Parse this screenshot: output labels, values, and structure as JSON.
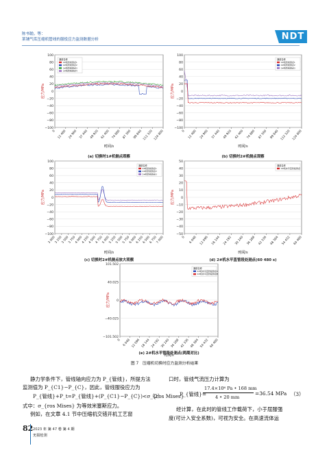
{
  "header": {
    "authors": "陈书翰，等：",
    "title": "某铺气库压缩机管线的服役应力监测数据分析",
    "logo": "NDT"
  },
  "figure": {
    "caption": "图 7　压缩机切换时应力监测分析结果",
    "panels": [
      {
        "id": "a",
        "caption": "(a) 切换时1#机侧点观察",
        "ylabel": "应力/MPa",
        "xlabel": "时间/s",
        "yticks": [
          "100",
          "80",
          "60",
          "40",
          "20",
          "0",
          "−20",
          "−40",
          "−60",
          "−80",
          "−100"
        ],
        "xticks": [
          "0",
          "12 480",
          "24 960",
          "37 440",
          "49 920",
          "62 400",
          "74 880",
          "87 360",
          "99 840",
          "112 320",
          "124 800"
        ],
        "legend_title": "通道名称",
        "legend": [
          "1#机管线测点1",
          "1#机管线测点2",
          "1#机管线测点3",
          "1#机管线测点4"
        ],
        "colors": [
          "#d62728",
          "#1f3fb4",
          "#2ca02c",
          "#9467bd"
        ]
      },
      {
        "id": "b",
        "caption": "(b) 切换时2#机侧点观察",
        "ylabel": "应力/MPa",
        "xlabel": "时间/s",
        "yticks": [
          "100",
          "80",
          "60",
          "40",
          "20",
          "0",
          "−20",
          "−40",
          "−60",
          "−80",
          "−100"
        ],
        "xticks": [
          "0",
          "12 480",
          "24 960",
          "37 440",
          "49 920",
          "62 400",
          "74 880",
          "87 360",
          "99 840",
          "112 320",
          "124 800"
        ],
        "legend_title": "通道名称",
        "legend": [
          "2#机管线测点1",
          "2#机管线测点2",
          "2#机管线测点3"
        ],
        "colors": [
          "#d62728",
          "#1f3fb4",
          "#9467bd"
        ]
      },
      {
        "id": "c",
        "caption": "(c) 切换时2#机侧点放大观察",
        "ylabel": "应力/MPa",
        "xlabel": "时间/s",
        "yticks": [
          "100",
          "80",
          "60",
          "40",
          "20",
          "0",
          "−20",
          "−40",
          "−60",
          "−80",
          "−100"
        ],
        "xticks": [
          "3 000",
          "3 250",
          "3 500",
          "3 750",
          "4 000",
          "4 250",
          "4 500",
          "4 750",
          "5 000",
          "5 250",
          "5 500",
          "5 750",
          "6 000",
          "6 250",
          "6 500",
          "6 750",
          "7 000"
        ],
        "legend_title": "通道名称",
        "legend": [
          "2#机管线测点1",
          "2#机管线测点2",
          "2#机管线测点3"
        ],
        "colors": [
          "#d62728",
          "#1f3fb4",
          "#9467bd"
        ]
      },
      {
        "id": "d",
        "caption": "(d) 2#机水平直管段处测点(60 480 s)",
        "ylabel": "应力/MPa",
        "xlabel": "时间/s",
        "yticks": [
          "50",
          "40",
          "30",
          "20",
          "10",
          "0",
          "−10",
          "−20",
          "−30",
          "−40",
          "−50"
        ],
        "xticks": [
          "0",
          "6 048",
          "12 096",
          "18 144",
          "24 192",
          "30 240",
          "36 288",
          "42 336",
          "48 384",
          "54 432",
          "60 480"
        ],
        "legend_title": "通道名称",
        "legend": [
          "2#机水平直管段测点"
        ],
        "colors": [
          "#d62728"
        ]
      },
      {
        "id": "e",
        "caption": "(e) 2#机水平管段处测点(两周对比)",
        "ylabel": "应力/MPa",
        "xlabel": "时间/s",
        "yticks": [
          "101.502",
          "40.025",
          "0",
          "−40.025",
          "−101.502"
        ],
        "xticks": [
          "0",
          "6 048",
          "12 096",
          "18 144",
          "24 192",
          "30 240",
          "36 288",
          "42 336",
          "48 384",
          "54 432",
          "60 480"
        ],
        "legend_title": "通道名称",
        "legend": [
          "2#机水平直管段测点A",
          "2#机水平直管段测点B"
        ],
        "colors": [
          "#1f3fb4",
          "#d62728"
        ]
      }
    ]
  },
  "body": {
    "left": [
      "静力学条件下，管线轴向应力为 P_{管线}，所提方法",
      "监测值为 P_{C1}−P_{C}，因此，管线服役应力为",
      "式中：σ_{ros Mises} 为等效米塞斯应力。",
      "例如，在文章 4.1 节中压缩机交错开机工艺窗"
    ],
    "eq2": "P_{管线}+P_t=P_{管线}+(P_{C1}−P_{C})<σ_{ros Mises}",
    "eq2_no": "（2）",
    "right": [
      "口时，管线气流压力计算为",
      "经计算，在此时的管线工作载荷下，小于屈服强",
      "度(可计入安全系数)，可视为安全。在高速流体运"
    ],
    "eq3_left": "P_{管线}=",
    "eq3_num": "17.4×10⁶ Pa • 168 mm",
    "eq3_den": "4 • 20 mm",
    "eq3_right": "=36.54 MPa",
    "eq3_no": "（3）"
  },
  "footer": {
    "page": "82",
    "issue": "2023 年 第 47 卷 第 4 期",
    "journal": "无损检测"
  }
}
